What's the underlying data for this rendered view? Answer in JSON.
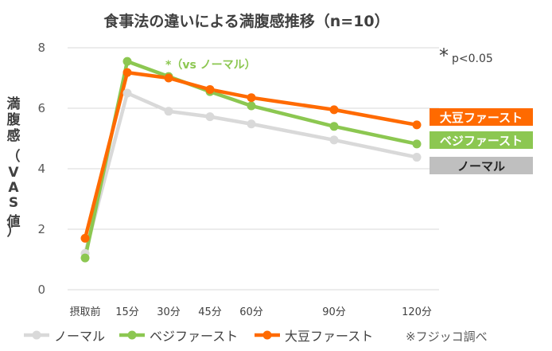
{
  "chart_data": {
    "type": "line",
    "title": "食事法の違いによる満腹感推移（n=10）",
    "ylabel": "満腹感（VAS値）",
    "xlabel": "",
    "categories": [
      "摂取前",
      "15分",
      "30分",
      "45分",
      "60分",
      "90分",
      "120分"
    ],
    "x_minutes": [
      0,
      15,
      30,
      45,
      60,
      90,
      120
    ],
    "ylim": [
      0,
      8
    ],
    "yticks": [
      0,
      2,
      4,
      6,
      8
    ],
    "grid": true,
    "legend_position": "bottom",
    "series": [
      {
        "name": "ノーマル",
        "color": "#d9d9d9",
        "end_label_color": "#bfbfbf",
        "values": [
          1.2,
          6.5,
          5.9,
          5.72,
          5.48,
          4.95,
          4.38
        ]
      },
      {
        "name": "ベジファースト",
        "color": "#8cc751",
        "end_label_color": "#8cc751",
        "values": [
          1.05,
          7.55,
          7.05,
          6.55,
          6.08,
          5.4,
          4.82
        ]
      },
      {
        "name": "大豆ファースト",
        "color": "#ff6a00",
        "end_label_color": "#ff6a00",
        "values": [
          1.7,
          7.18,
          7.0,
          6.62,
          6.35,
          5.95,
          5.45
        ]
      }
    ],
    "annotation": "*（vs ノーマル）",
    "significance_star": "*",
    "significance_p": "p<0.05",
    "end_labels": [
      "大豆ファースト",
      "ベジファースト",
      "ノーマル"
    ],
    "source_note": "※フジッコ調べ"
  }
}
